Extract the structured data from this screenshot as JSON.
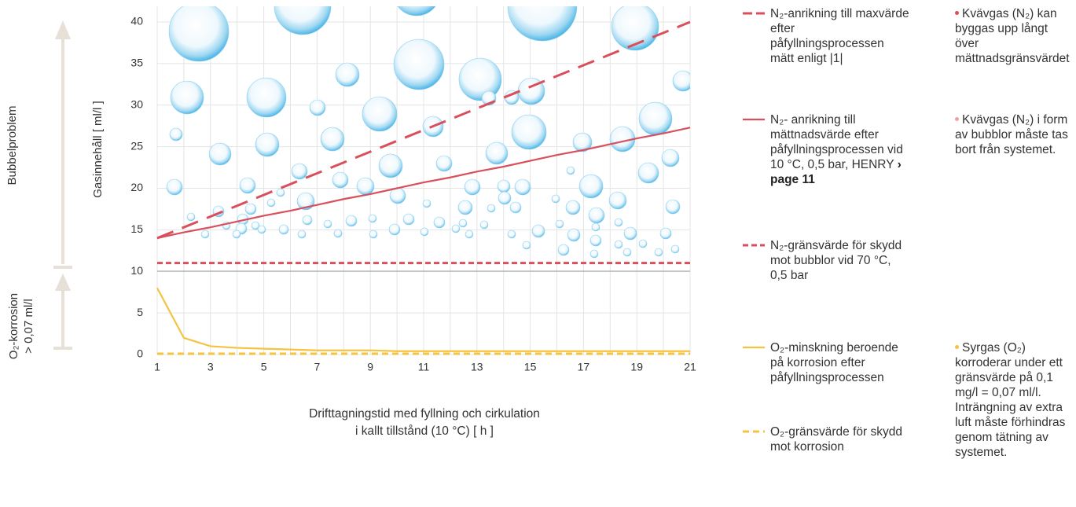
{
  "chart_data": {
    "type": "line",
    "ylabel": "Gasinnehåll [ ml/l ]",
    "xlabel": [
      "Drifttagningstid med fyllning och cirkulation",
      "i kallt tillstånd (10 °C) [ h ]"
    ],
    "side_labels": {
      "upper": "Bubbelproblem",
      "lower": [
        "O₂-korrosion",
        "> 0,07 ml/l"
      ]
    },
    "x": [
      1,
      2,
      3,
      4,
      5,
      6,
      7,
      8,
      9,
      10,
      11,
      12,
      13,
      14,
      15,
      16,
      17,
      18,
      19,
      20,
      21
    ],
    "xlim": [
      1,
      21
    ],
    "xticks": [
      1,
      3,
      5,
      7,
      9,
      11,
      13,
      15,
      17,
      19,
      21
    ],
    "ylim": [
      0,
      40
    ],
    "yticks": [
      0,
      5,
      10,
      15,
      20,
      25,
      30,
      35,
      40
    ],
    "grid": true,
    "series": [
      {
        "name": "N₂-anrikning till maxvärde efter påfyllningsprocessen mätt enligt |1|",
        "color": "#d94f5c",
        "style": "long-dash",
        "values": [
          14,
          15.3,
          16.6,
          17.9,
          19.2,
          20.5,
          21.8,
          23.1,
          24.4,
          25.7,
          27,
          28.3,
          29.6,
          30.9,
          32.2,
          33.5,
          34.8,
          36.1,
          37.4,
          38.7,
          40
        ]
      },
      {
        "name": "N₂- anrikning till mättnadsvärde efter påfyllningsprocessen vid 10 °C, 0,5 bar, HENRY",
        "link": "› page 11",
        "color": "#d94f5c",
        "style": "solid",
        "values": [
          14,
          14.7,
          15.3,
          16,
          16.7,
          17.3,
          18,
          18.7,
          19.3,
          20,
          20.7,
          21.3,
          22,
          22.6,
          23.3,
          24,
          24.6,
          25.3,
          26,
          26.6,
          27.3
        ]
      },
      {
        "name": "N₂-gränsvärde för skydd mot bubblor vid 70 °C, 0,5 bar",
        "color": "#d94f5c",
        "style": "dotted",
        "values": [
          11,
          11,
          11,
          11,
          11,
          11,
          11,
          11,
          11,
          11,
          11,
          11,
          11,
          11,
          11,
          11,
          11,
          11,
          11,
          11,
          11
        ]
      },
      {
        "name": "O₂-minskning beroende på korrosion efter påfyllningsprocessen",
        "color": "#f5c342",
        "style": "solid",
        "values": [
          8,
          2,
          1,
          0.8,
          0.7,
          0.6,
          0.5,
          0.5,
          0.5,
          0.4,
          0.4,
          0.4,
          0.4,
          0.4,
          0.4,
          0.4,
          0.4,
          0.4,
          0.4,
          0.4,
          0.4
        ]
      },
      {
        "name": "O₂-gränsvärde för skydd mot korrosion",
        "color": "#f5c342",
        "style": "dashed",
        "values": [
          0.1,
          0.1,
          0.1,
          0.1,
          0.1,
          0.1,
          0.1,
          0.1,
          0.1,
          0.1,
          0.1,
          0.1,
          0.1,
          0.1,
          0.1,
          0.1,
          0.1,
          0.1,
          0.1,
          0.1,
          0.1
        ]
      }
    ],
    "notes": [
      {
        "text": "Kvävgas (N₂) kan byggas upp långt över mättnadsgränsvärdet",
        "color": "#d94f5c"
      },
      {
        "text": "Kvävgas (N₂) i form av bubblor måste tas bort från systemet.",
        "color": "#eea0a8"
      },
      {
        "text": "Syrgas (O₂) korroderar under ett gränsvärde på 0,1 mg/l = 0,07 ml/l. Inträngning av extra luft måste förhindras genom tätning av systemet.",
        "color": "#f5c342"
      }
    ]
  }
}
